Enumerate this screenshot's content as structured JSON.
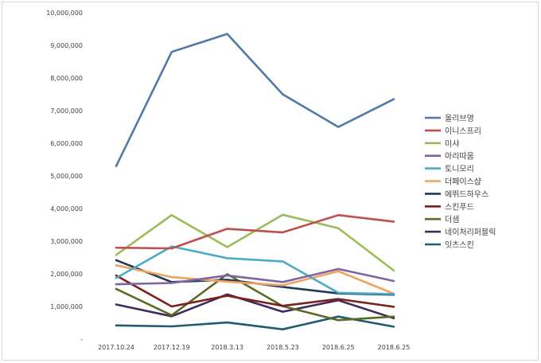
{
  "chart_data": {
    "type": "line",
    "title": "",
    "xlabel": "",
    "ylabel": "",
    "categories": [
      "2017.10.24",
      "2017.12.19",
      "2018.3.13",
      "2018.5.23",
      "2018.6.25",
      "2018.6.25"
    ],
    "ylim": [
      0,
      10000000
    ],
    "yticks": [
      0,
      1000000,
      2000000,
      3000000,
      4000000,
      5000000,
      6000000,
      7000000,
      8000000,
      9000000,
      10000000
    ],
    "ytick_labels": [
      "-",
      "1,000,000",
      "2,000,000",
      "3,000,000",
      "4,000,000",
      "5,000,000",
      "6,000,000",
      "7,000,000",
      "8,000,000",
      "9,000,000",
      "10,000,000"
    ],
    "grid": false,
    "legend_position": "right",
    "series": [
      {
        "name": "올리브영",
        "color": "#4f79a7",
        "values": [
          5300000,
          8800000,
          9350000,
          7500000,
          6500000,
          7350000
        ]
      },
      {
        "name": "이니스프리",
        "color": "#c0504d",
        "values": [
          2800000,
          2780000,
          3380000,
          3270000,
          3800000,
          3600000
        ]
      },
      {
        "name": "미샤",
        "color": "#9bbb59",
        "values": [
          2580000,
          3800000,
          2820000,
          3810000,
          3400000,
          2100000
        ]
      },
      {
        "name": "아리따움",
        "color": "#8064a2",
        "values": [
          1680000,
          1720000,
          1950000,
          1750000,
          2150000,
          1780000
        ]
      },
      {
        "name": "토니모리",
        "color": "#4bacc6",
        "values": [
          1870000,
          2840000,
          2480000,
          2380000,
          1420000,
          1380000
        ]
      },
      {
        "name": "더페이스샵",
        "color": "#f0a35e",
        "values": [
          2260000,
          1900000,
          1760000,
          1650000,
          2080000,
          1390000
        ]
      },
      {
        "name": "에뛰드하우스",
        "color": "#1f3a5a",
        "values": [
          2420000,
          1750000,
          1820000,
          1600000,
          1400000,
          1360000
        ]
      },
      {
        "name": "스킨푸드",
        "color": "#7b1f1f",
        "values": [
          1950000,
          1000000,
          1330000,
          1020000,
          1230000,
          990000
        ]
      },
      {
        "name": "더샘",
        "color": "#5a6b24",
        "values": [
          1540000,
          730000,
          1990000,
          1010000,
          580000,
          690000
        ]
      },
      {
        "name": "네이처리퍼블릭",
        "color": "#3f2b5e",
        "values": [
          1060000,
          700000,
          1370000,
          840000,
          1190000,
          640000
        ]
      },
      {
        "name": "잇츠스킨",
        "color": "#215b6e",
        "values": [
          420000,
          390000,
          510000,
          300000,
          690000,
          380000
        ]
      }
    ]
  }
}
